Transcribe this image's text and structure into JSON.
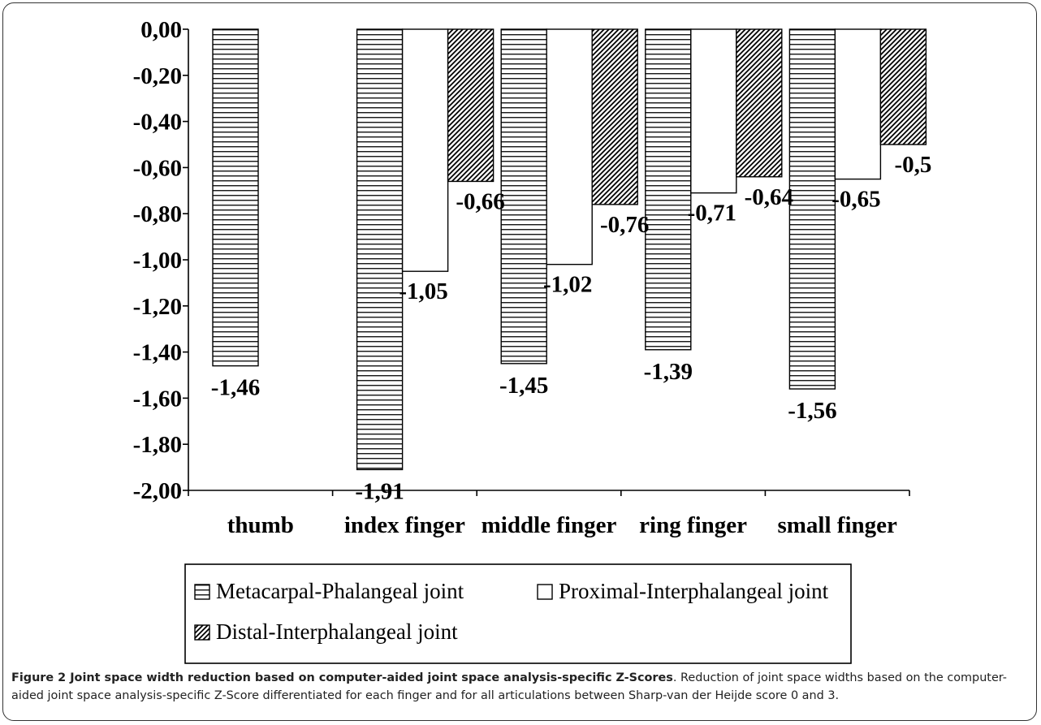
{
  "chart_data": {
    "type": "bar",
    "categories": [
      "thumb",
      "index finger",
      "middle finger",
      "ring finger",
      "small finger"
    ],
    "series": [
      {
        "name": "Metacarpal-Phalangeal joint",
        "pattern": "horizontal-lines",
        "values": [
          -1.46,
          -1.91,
          -1.45,
          -1.39,
          -1.56
        ],
        "labels": [
          "-1,46",
          "-1,91",
          "-1,45",
          "-1,39",
          "-1,56"
        ]
      },
      {
        "name": "Proximal-Interphalangeal joint",
        "pattern": "blank",
        "values": [
          null,
          -1.05,
          -1.02,
          -0.71,
          -0.65
        ],
        "labels": [
          "",
          "-1,05",
          "-1,02",
          "-0,71",
          "-0,65"
        ]
      },
      {
        "name": "Distal-Interphalangeal joint",
        "pattern": "diagonal-hatch",
        "values": [
          null,
          -0.66,
          -0.76,
          -0.64,
          -0.5
        ],
        "labels": [
          "",
          "-0,66",
          "-0,76",
          "-0,64",
          "-0,5"
        ]
      }
    ],
    "yticks": [
      "0,00",
      "-0,20",
      "-0,40",
      "-0,60",
      "-0,80",
      "-1,00",
      "-1,20",
      "-1,40",
      "-1,60",
      "-1,80",
      "-2,00"
    ],
    "ylim": [
      -2.0,
      0.0
    ],
    "legend_position": "bottom",
    "grid": false
  },
  "caption": {
    "bold": "Figure 2 Joint space width reduction based on computer-aided joint space analysis-specific Z-Scores",
    "text": ". Reduction of joint space widths based on the computer-aided joint space analysis-specific Z-Score differentiated for each finger and for all articulations between Sharp-van der Heijde score 0 and 3."
  }
}
